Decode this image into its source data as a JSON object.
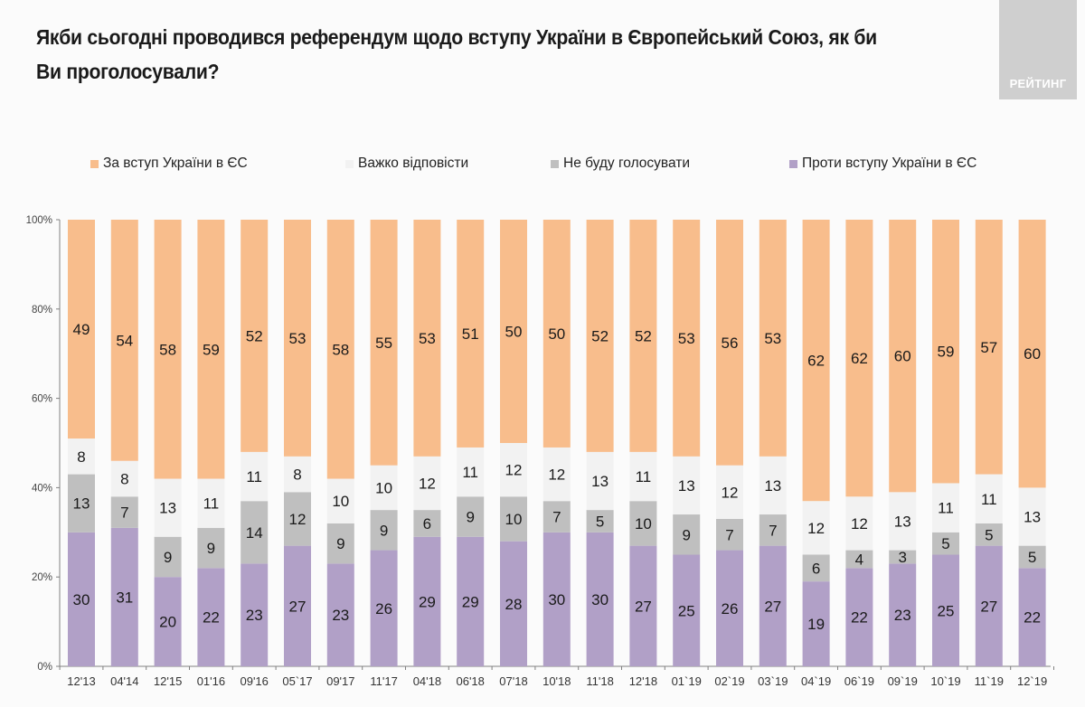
{
  "header": {
    "title": "Якби сьогодні проводився референдум щодо вступу України в Європейський Союз, як би Ви проголосували?",
    "logo_text": "РЕЙТИНГ"
  },
  "colors": {
    "for": "#f8bd8c",
    "hard_to_say": "#f2f2f2",
    "will_not_vote": "#bfbfbf",
    "against": "#b1a0c7",
    "axis": "#808080",
    "logo_bg": "#cfcfcf"
  },
  "chart_data": {
    "type": "bar",
    "stacked": true,
    "title": "Якби сьогодні проводився референдум щодо вступу України в Європейський Союз, як би Ви проголосували?",
    "xlabel": "",
    "ylabel": "",
    "ylim": [
      0,
      100
    ],
    "yticks": [
      "0%",
      "20%",
      "40%",
      "60%",
      "80%",
      "100%"
    ],
    "legend_position": "top",
    "grid": false,
    "categories": [
      "12'13",
      "04'14",
      "12'15",
      "01'16",
      "09'16",
      "05`17",
      "09'17",
      "11'17",
      "04'18",
      "06'18",
      "07'18",
      "10'18",
      "11'18",
      "12'18",
      "01`19",
      "02`19",
      "03`19",
      "04`19",
      "06`19",
      "09`19",
      "10`19",
      "11`19",
      "12`19"
    ],
    "series": [
      {
        "name": "Проти вступу України в ЄС",
        "key": "against",
        "values": [
          30,
          31,
          20,
          22,
          23,
          27,
          23,
          26,
          29,
          29,
          28,
          30,
          30,
          27,
          25,
          26,
          27,
          19,
          22,
          23,
          25,
          27,
          22
        ]
      },
      {
        "name": "Не буду голосувати",
        "key": "will_not_vote",
        "values": [
          13,
          7,
          9,
          9,
          14,
          12,
          9,
          9,
          6,
          9,
          10,
          7,
          5,
          10,
          9,
          7,
          7,
          6,
          4,
          3,
          5,
          5,
          5
        ]
      },
      {
        "name": "Важко відповісти",
        "key": "hard_to_say",
        "values": [
          8,
          8,
          13,
          11,
          11,
          8,
          10,
          10,
          12,
          11,
          12,
          12,
          13,
          11,
          13,
          12,
          13,
          12,
          12,
          13,
          11,
          11,
          13
        ]
      },
      {
        "name": "За вступ України в ЄС",
        "key": "for",
        "values": [
          49,
          54,
          58,
          59,
          52,
          53,
          58,
          55,
          53,
          51,
          50,
          50,
          52,
          52,
          53,
          56,
          53,
          62,
          62,
          60,
          59,
          57,
          60
        ]
      }
    ]
  },
  "legend": [
    {
      "label": "За вступ України в ЄС",
      "key": "for"
    },
    {
      "label": "Важко відповісти",
      "key": "hard_to_say"
    },
    {
      "label": "Не буду голосувати",
      "key": "will_not_vote"
    },
    {
      "label": "Проти вступу України в ЄС",
      "key": "against"
    }
  ]
}
